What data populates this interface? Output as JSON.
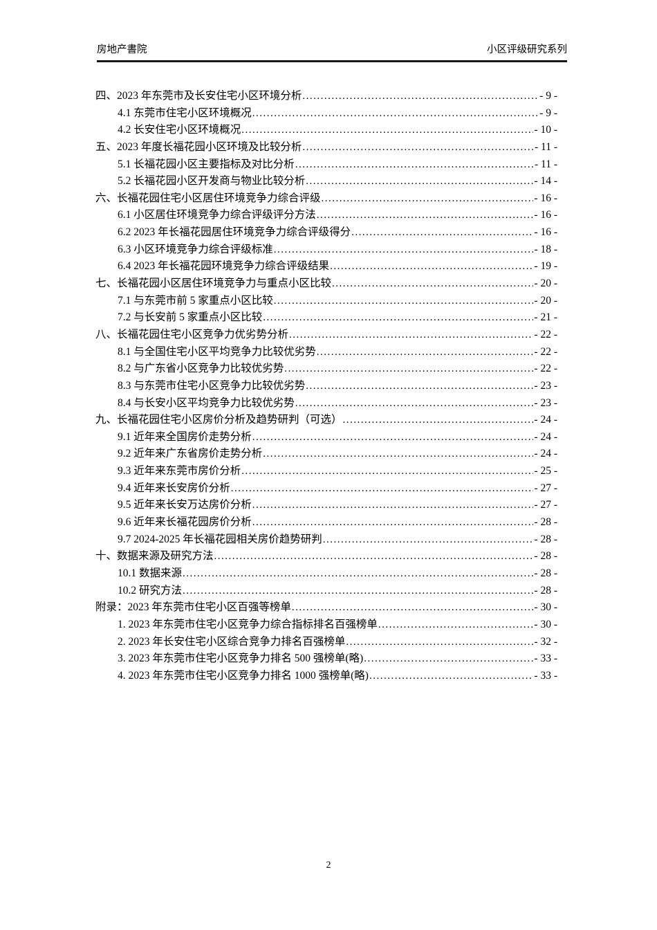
{
  "header": {
    "left_text": "房地产書院",
    "right_text": "小区评级研究系列"
  },
  "toc": {
    "entries": [
      {
        "level": 1,
        "title": "四、2023 年东莞市及长安住宅小区环境分析",
        "page": "- 9 -"
      },
      {
        "level": 2,
        "title": "4.1 东莞市住宅小区环境概况",
        "page": "- 9 -"
      },
      {
        "level": 2,
        "title": "4.2 长安住宅小区环境概况",
        "page": "- 10 -"
      },
      {
        "level": 1,
        "title": "五、2023 年度长福花园小区环境及比较分析",
        "page": "- 11 -"
      },
      {
        "level": 2,
        "title": "5.1 长福花园小区主要指标及对比分析",
        "page": "- 11 -"
      },
      {
        "level": 2,
        "title": "5.2 长福花园小区开发商与物业比较分析",
        "page": "- 14 -"
      },
      {
        "level": 1,
        "title": "六、长福花园住宅小区居住环境竞争力综合评级",
        "page": "- 16 -"
      },
      {
        "level": 2,
        "title": "6.1 小区居住环境竞争力综合评级评分方法",
        "page": "- 16 -"
      },
      {
        "level": 2,
        "title": "6.2 2023 年长福花园居住环境竞争力综合评级得分",
        "page": "- 16 -"
      },
      {
        "level": 2,
        "title": "6.3 小区环境竞争力综合评级标准",
        "page": "- 18 -"
      },
      {
        "level": 2,
        "title": "6.4 2023 年长福花园环境竞争力综合评级结果",
        "page": "- 19 -"
      },
      {
        "level": 1,
        "title": "七、长福花园小区居住环境竞争力与重点小区比较",
        "page": "- 20 -"
      },
      {
        "level": 2,
        "title": "7.1 与东莞市前 5 家重点小区比较",
        "page": "- 20 -"
      },
      {
        "level": 2,
        "title": "7.2 与长安前 5 家重点小区比较",
        "page": "- 21 -"
      },
      {
        "level": 1,
        "title": "八、长福花园住宅小区竞争力优劣势分析",
        "page": "- 22 -"
      },
      {
        "level": 2,
        "title": "8.1 与全国住宅小区平均竞争力比较优劣势",
        "page": "- 22 -"
      },
      {
        "level": 2,
        "title": "8.2 与广东省小区竞争力比较优劣势",
        "page": "- 22 -"
      },
      {
        "level": 2,
        "title": "8.3 与东莞市住宅小区竞争力比较优劣势",
        "page": "- 23 -"
      },
      {
        "level": 2,
        "title": "8.4 与长安小区平均竞争力比较优劣势",
        "page": "- 23 -"
      },
      {
        "level": 1,
        "title": "九、长福花园住宅小区房价分析及趋势研判（可选）",
        "page": "- 24 -"
      },
      {
        "level": 2,
        "title": "9.1 近年来全国房价走势分析",
        "page": "- 24 -"
      },
      {
        "level": 2,
        "title": "9.2 近年来广东省房价走势分析",
        "page": "- 24 -"
      },
      {
        "level": 2,
        "title": "9.3 近年来东莞市房价分析",
        "page": "- 25 -"
      },
      {
        "level": 2,
        "title": "9.4 近年来长安房价分析",
        "page": "- 27 -"
      },
      {
        "level": 2,
        "title": "9.5 近年来长安万达房价分析",
        "page": "- 27 -"
      },
      {
        "level": 2,
        "title": "9.6 近年来长福花园房价分析",
        "page": "- 28 -"
      },
      {
        "level": 2,
        "title": "9.7 2024-2025 年长福花园相关房价趋势研判",
        "page": "- 28 -"
      },
      {
        "level": 1,
        "title": "十、数据来源及研究方法",
        "page": "- 28 -"
      },
      {
        "level": 2,
        "title": "10.1 数据来源",
        "page": "- 28 -"
      },
      {
        "level": 2,
        "title": "10.2 研究方法",
        "page": "- 28 -"
      },
      {
        "level": 1,
        "title": "附录：2023 年东莞市住宅小区百强等榜单",
        "page": "- 30 -"
      },
      {
        "level": 2,
        "title": "1. 2023 年东莞市住宅小区竞争力综合指标排名百强榜单",
        "page": "- 30 -"
      },
      {
        "level": 2,
        "title": "2. 2023 年长安住宅小区综合竞争力排名百强榜单",
        "page": "- 32 -"
      },
      {
        "level": 2,
        "title": "3. 2023 年东莞市住宅小区竞争力排名 500 强榜单(略)",
        "page": "- 33 -"
      },
      {
        "level": 2,
        "title": "4. 2023 年东莞市住宅小区竞争力排名 1000 强榜单(略)",
        "page": "- 33 -"
      }
    ]
  },
  "footer": {
    "page_number": "2"
  }
}
